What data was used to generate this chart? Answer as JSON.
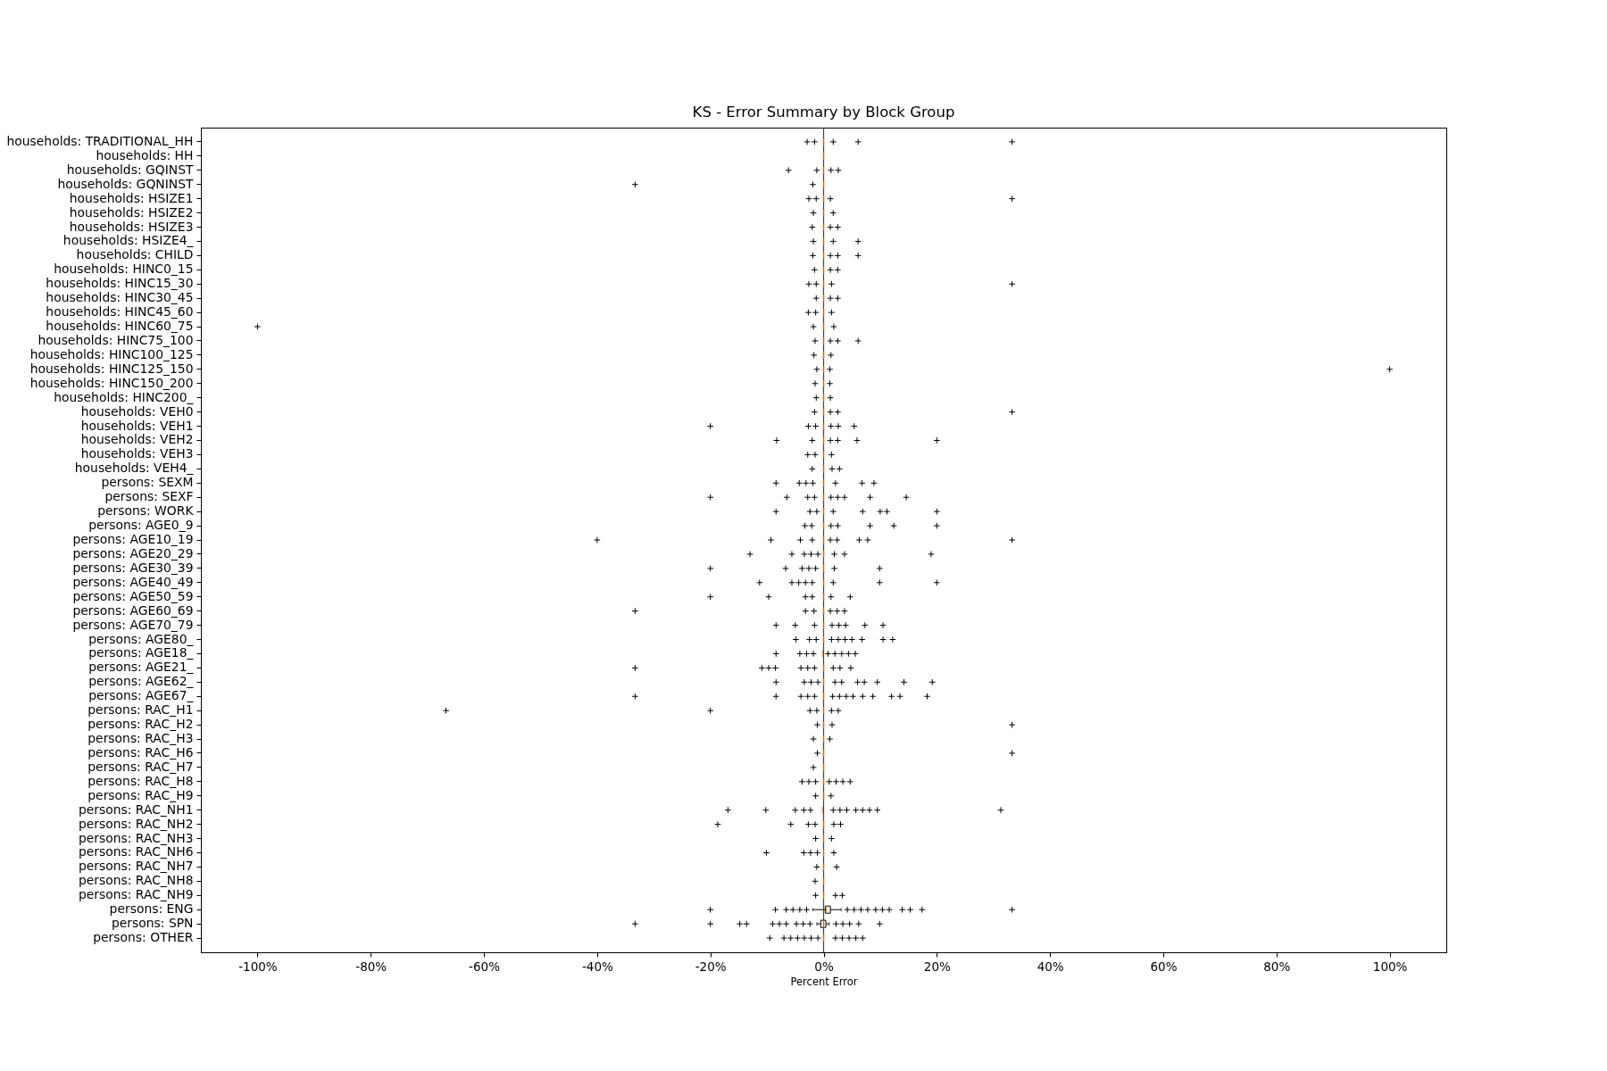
{
  "chart_data": {
    "type": "box",
    "orientation": "horizontal",
    "title": "KS - Error Summary by Block Group",
    "xlabel": "Percent Error",
    "color": "#ff7f0e",
    "marker": "cross",
    "xlim": [
      -110,
      110
    ],
    "xticks": [
      {
        "value": -100,
        "label": "-100%"
      },
      {
        "value": -80,
        "label": "-80%"
      },
      {
        "value": -60,
        "label": "-60%"
      },
      {
        "value": -40,
        "label": "-40%"
      },
      {
        "value": -20,
        "label": "-20%"
      },
      {
        "value": 0,
        "label": "0%"
      },
      {
        "value": 20,
        "label": "20%"
      },
      {
        "value": 40,
        "label": "40%"
      },
      {
        "value": 60,
        "label": "60%"
      },
      {
        "value": 80,
        "label": "80%"
      },
      {
        "value": 100,
        "label": "100%"
      }
    ],
    "ref_lines": [
      {
        "axis": "x",
        "value": 0,
        "color": "#444444"
      }
    ],
    "categories": [
      "households: TRADITIONAL_HH",
      "households: HH",
      "households: GQINST",
      "households: GQNINST",
      "households: HSIZE1",
      "households: HSIZE2",
      "households: HSIZE3",
      "households: HSIZE4_",
      "households: CHILD",
      "households: HINC0_15",
      "households: HINC15_30",
      "households: HINC30_45",
      "households: HINC45_60",
      "households: HINC60_75",
      "households: HINC75_100",
      "households: HINC100_125",
      "households: HINC125_150",
      "households: HINC150_200",
      "households: HINC200_",
      "households: VEH0",
      "households: VEH1",
      "households: VEH2",
      "households: VEH3",
      "households: VEH4_",
      "persons: SEXM",
      "persons: SEXF",
      "persons: WORK",
      "persons: AGE0_9",
      "persons: AGE10_19",
      "persons: AGE20_29",
      "persons: AGE30_39",
      "persons: AGE40_49",
      "persons: AGE50_59",
      "persons: AGE60_69",
      "persons: AGE70_79",
      "persons: AGE80_",
      "persons: AGE18_",
      "persons: AGE21_",
      "persons: AGE62_",
      "persons: AGE67_",
      "persons: RAC_H1",
      "persons: RAC_H2",
      "persons: RAC_H3",
      "persons: RAC_H6",
      "persons: RAC_H7",
      "persons: RAC_H8",
      "persons: RAC_H9",
      "persons: RAC_NH1",
      "persons: RAC_NH2",
      "persons: RAC_NH3",
      "persons: RAC_NH6",
      "persons: RAC_NH7",
      "persons: RAC_NH8",
      "persons: RAC_NH9",
      "persons: ENG",
      "persons: SPN",
      "persons: OTHER"
    ],
    "boxes": [
      {
        "low": 0,
        "q1": 0,
        "median": 0,
        "q3": 0,
        "high": 0,
        "outliers": [
          -2.9,
          -1.6,
          1.7,
          6.1,
          33.3
        ]
      },
      {
        "low": 0,
        "q1": 0,
        "median": 0,
        "q3": 0,
        "high": 0
      },
      {
        "low": 0,
        "q1": 0,
        "median": 0,
        "q3": 0,
        "high": 0,
        "outliers": [
          -6.2,
          -1.2,
          1.3,
          2.6
        ]
      },
      {
        "low": 0,
        "q1": 0,
        "median": 0,
        "q3": 0,
        "high": 0,
        "outliers": [
          -33.3,
          -1.9
        ]
      },
      {
        "low": 0,
        "q1": 0,
        "median": 0,
        "q3": 0,
        "high": 0,
        "outliers": [
          -2.6,
          -1.3,
          1.2,
          33.3
        ]
      },
      {
        "low": 0,
        "q1": 0,
        "median": 0,
        "q3": 0,
        "high": 0,
        "outliers": [
          -1.8,
          1.7
        ]
      },
      {
        "low": 0,
        "q1": 0,
        "median": 0,
        "q3": 0,
        "high": 0,
        "outliers": [
          -2.0,
          1.2,
          2.5
        ]
      },
      {
        "low": 0,
        "q1": 0,
        "median": 0,
        "q3": 0,
        "high": 0,
        "outliers": [
          -1.8,
          1.7,
          6.1
        ]
      },
      {
        "low": 0,
        "q1": 0,
        "median": 0,
        "q3": 0,
        "high": 0,
        "outliers": [
          -1.9,
          1.2,
          2.5,
          6.1
        ]
      },
      {
        "low": 0,
        "q1": 0,
        "median": 0,
        "q3": 0,
        "high": 0,
        "outliers": [
          -1.6,
          1.2,
          2.5
        ]
      },
      {
        "low": 0,
        "q1": 0,
        "median": 0,
        "q3": 0,
        "high": 0,
        "outliers": [
          -2.6,
          -1.3,
          1.4,
          33.3
        ]
      },
      {
        "low": 0,
        "q1": 0,
        "median": 0,
        "q3": 0,
        "high": 0,
        "outliers": [
          -1.3,
          1.2,
          2.5
        ]
      },
      {
        "low": 0,
        "q1": 0,
        "median": 0,
        "q3": 0,
        "high": 0,
        "outliers": [
          -2.7,
          -1.4,
          1.4
        ]
      },
      {
        "low": 0,
        "q1": 0,
        "median": 0,
        "q3": 0,
        "high": 0,
        "outliers": [
          -100,
          -1.8,
          1.8
        ]
      },
      {
        "low": 0,
        "q1": 0,
        "median": 0,
        "q3": 0,
        "high": 0,
        "outliers": [
          -1.5,
          1.2,
          2.5,
          6.1
        ]
      },
      {
        "low": 0,
        "q1": 0,
        "median": 0,
        "q3": 0,
        "high": 0,
        "outliers": [
          -1.7,
          1.3
        ]
      },
      {
        "low": 0,
        "q1": 0,
        "median": 0,
        "q3": 0,
        "high": 0,
        "outliers": [
          -1.2,
          1.1,
          100
        ]
      },
      {
        "low": 0,
        "q1": 0,
        "median": 0,
        "q3": 0,
        "high": 0,
        "outliers": [
          -1.5,
          1.1
        ]
      },
      {
        "low": 0,
        "q1": 0,
        "median": 0,
        "q3": 0,
        "high": 0,
        "outliers": [
          -1.3,
          1.2
        ]
      },
      {
        "low": 0,
        "q1": 0,
        "median": 0,
        "q3": 0,
        "high": 0,
        "outliers": [
          -1.6,
          1.2,
          2.5,
          33.3
        ]
      },
      {
        "low": 0,
        "q1": 0,
        "median": 0,
        "q3": 0,
        "high": 0,
        "outliers": [
          -20,
          -2.7,
          -1.4,
          1.3,
          2.6,
          5.4
        ]
      },
      {
        "low": 0,
        "q1": 0,
        "median": 0,
        "q3": 0,
        "high": 0,
        "outliers": [
          -8.3,
          -2.0,
          1.2,
          2.5,
          5.9,
          20
        ]
      },
      {
        "low": 0,
        "q1": 0,
        "median": 0,
        "q3": 0,
        "high": 0,
        "outliers": [
          -2.8,
          -1.5,
          1.4
        ]
      },
      {
        "low": 0,
        "q1": 0,
        "median": 0,
        "q3": 0,
        "high": 0,
        "outliers": [
          -2.0,
          1.5,
          2.8
        ]
      },
      {
        "low": 0,
        "q1": 0,
        "median": 0,
        "q3": 0,
        "high": 0,
        "outliers": [
          -8.4,
          -4.3,
          -3.1,
          -1.9,
          2.1,
          6.8,
          8.9
        ]
      },
      {
        "low": 0,
        "q1": 0,
        "median": 0,
        "q3": 0,
        "high": 0,
        "outliers": [
          -20,
          -6.5,
          -2.8,
          -1.6,
          1.3,
          2.5,
          3.7,
          8.2,
          14.6
        ]
      },
      {
        "low": 0,
        "q1": 0,
        "median": 0,
        "q3": 0,
        "high": 0,
        "outliers": [
          -8.4,
          -2.4,
          -1.2,
          1.7,
          6.9,
          10.0,
          11.2,
          20
        ]
      },
      {
        "low": 0,
        "q1": 0,
        "median": 0,
        "q3": 0,
        "high": 0,
        "outliers": [
          -3.3,
          -2.1,
          1.3,
          2.5,
          8.2,
          12.4,
          20
        ]
      },
      {
        "low": 0,
        "q1": 0,
        "median": 0,
        "q3": 0,
        "high": 0,
        "outliers": [
          -40,
          -9.3,
          -4.1,
          -2.0,
          1.2,
          2.4,
          6.3,
          7.8,
          33.3
        ]
      },
      {
        "low": 0,
        "q1": 0,
        "median": 0,
        "q3": 0,
        "high": 0,
        "outliers": [
          -13.0,
          -5.6,
          -3.4,
          -2.2,
          -1.0,
          1.9,
          3.7,
          19.0
        ]
      },
      {
        "low": 0,
        "q1": 0,
        "median": 0,
        "q3": 0,
        "high": 0,
        "outliers": [
          -20,
          -6.7,
          -3.8,
          -2.6,
          -1.4,
          1.9,
          9.9
        ]
      },
      {
        "low": 0,
        "q1": 0,
        "median": 0,
        "q3": 0,
        "high": 0,
        "outliers": [
          -11.3,
          -5.6,
          -4.4,
          -3.2,
          -2.0,
          1.7,
          9.9,
          20
        ]
      },
      {
        "low": 0,
        "q1": 0,
        "median": 0,
        "q3": 0,
        "high": 0,
        "outliers": [
          -20,
          -9.7,
          -3.2,
          -2.0,
          1.3,
          4.7
        ]
      },
      {
        "low": 0,
        "q1": 0,
        "median": 0,
        "q3": 0,
        "high": 0,
        "outliers": [
          -33.3,
          -3.2,
          -1.7,
          1.2,
          2.4,
          3.7
        ]
      },
      {
        "low": 0,
        "q1": 0,
        "median": 0,
        "q3": 0,
        "high": 0,
        "outliers": [
          -8.4,
          -5.0,
          -1.6,
          1.5,
          2.7,
          3.9,
          7.3,
          10.5
        ]
      },
      {
        "low": 0,
        "q1": 0,
        "median": 0,
        "q3": 0,
        "high": 0,
        "outliers": [
          -4.9,
          -2.5,
          -1.3,
          1.4,
          2.6,
          3.8,
          5.0,
          6.8,
          10.5,
          12.2
        ]
      },
      {
        "low": -0.2,
        "q1": -0.2,
        "median": -0.2,
        "q3": -0.2,
        "high": -0.2,
        "outliers": [
          -8.4,
          -4.2,
          -3.0,
          -1.8,
          0.8,
          2.0,
          3.2,
          4.4,
          5.6
        ]
      },
      {
        "low": 0,
        "q1": 0,
        "median": 0,
        "q3": 0,
        "high": 0,
        "outliers": [
          -33.3,
          -10.9,
          -9.7,
          -8.5,
          -4.0,
          -2.8,
          -1.6,
          1.7,
          2.9,
          4.8
        ]
      },
      {
        "low": 0,
        "q1": 0,
        "median": 0,
        "q3": 0,
        "high": 0,
        "outliers": [
          -8.4,
          -3.4,
          -2.2,
          -1.0,
          2.0,
          3.2,
          6.0,
          7.2,
          9.5,
          14.2,
          19.2
        ]
      },
      {
        "low": 0,
        "q1": 0,
        "median": 0,
        "q3": 0,
        "high": 0,
        "outliers": [
          -33.3,
          -8.4,
          -4.0,
          -2.8,
          -1.6,
          1.6,
          2.8,
          4.0,
          5.2,
          6.9,
          8.7,
          12.0,
          13.5,
          18.3
        ]
      },
      {
        "low": 0,
        "q1": 0,
        "median": 0,
        "q3": 0,
        "high": 0,
        "outliers": [
          -66.7,
          -20,
          -2.4,
          -1.2,
          1.4,
          2.6
        ]
      },
      {
        "low": 0,
        "q1": 0,
        "median": 0,
        "q3": 0,
        "high": 0,
        "outliers": [
          -1.1,
          1.5,
          33.3
        ]
      },
      {
        "low": 0,
        "q1": 0,
        "median": 0,
        "q3": 0,
        "high": 0,
        "outliers": [
          -1.8,
          1.1
        ]
      },
      {
        "low": 0,
        "q1": 0,
        "median": 0,
        "q3": 0,
        "high": 0,
        "outliers": [
          -1.1,
          33.3
        ]
      },
      {
        "low": 0,
        "q1": 0,
        "median": 0,
        "q3": 0,
        "high": 0,
        "outliers": [
          -1.8
        ]
      },
      {
        "low": 0,
        "q1": 0,
        "median": 0,
        "q3": 0,
        "high": 0,
        "outliers": [
          -3.8,
          -2.6,
          -1.4,
          1.0,
          2.2,
          3.4,
          4.7
        ]
      },
      {
        "low": 0,
        "q1": 0,
        "median": 0,
        "q3": 0,
        "high": 0,
        "outliers": [
          -1.4,
          1.3
        ]
      },
      {
        "low": -0.2,
        "q1": -0.2,
        "median": -0.2,
        "q3": -0.2,
        "high": -0.2,
        "outliers": [
          -16.9,
          -10.2,
          -5.0,
          -3.5,
          -2.3,
          1.7,
          2.9,
          4.1,
          5.7,
          6.9,
          8.1,
          9.5,
          31.3
        ]
      },
      {
        "low": 0,
        "q1": 0,
        "median": 0,
        "q3": 0,
        "high": 0,
        "outliers": [
          -18.7,
          -5.8,
          -2.7,
          -1.5,
          1.8,
          3.0
        ]
      },
      {
        "low": 0,
        "q1": 0,
        "median": 0,
        "q3": 0,
        "high": 0,
        "outliers": [
          -1.4,
          1.4
        ]
      },
      {
        "low": 0,
        "q1": 0,
        "median": 0,
        "q3": 0,
        "high": 0,
        "outliers": [
          -10.1,
          -3.5,
          -2.3,
          -1.1,
          1.8
        ]
      },
      {
        "low": 0,
        "q1": 0,
        "median": 0,
        "q3": 0,
        "high": 0,
        "outliers": [
          -1.2,
          2.3
        ]
      },
      {
        "low": 0,
        "q1": 0,
        "median": 0,
        "q3": 0,
        "high": 0,
        "outliers": [
          -1.5
        ]
      },
      {
        "low": 0,
        "q1": 0,
        "median": 0,
        "q3": 0,
        "high": 0,
        "outliers": [
          -1.4,
          2.1,
          3.3
        ]
      },
      {
        "low": -1.9,
        "q1": 0.3,
        "median": 0.5,
        "q3": 1.2,
        "high": 3.1,
        "outliers": [
          -20,
          -8.5,
          -6.6,
          -5.4,
          -4.2,
          -3.0,
          4.2,
          5.4,
          6.6,
          7.8,
          9.2,
          10.4,
          11.6,
          13.9,
          15.3,
          17.4,
          33.3
        ]
      },
      {
        "low": -1.2,
        "q1": -0.5,
        "median": 0,
        "q3": 0.4,
        "high": 1.0,
        "outliers": [
          -33.3,
          -20,
          -14.8,
          -13.6,
          -9.0,
          -7.8,
          -6.6,
          -4.8,
          -3.6,
          -2.4,
          2.2,
          3.4,
          4.6,
          6.2,
          9.9
        ]
      },
      {
        "low": 0,
        "q1": 0,
        "median": 0,
        "q3": 0,
        "high": 0,
        "outliers": [
          -9.5,
          -7.0,
          -5.8,
          -4.6,
          -3.4,
          -2.2,
          -1.0,
          2.1,
          3.3,
          4.5,
          5.7,
          6.9
        ]
      }
    ]
  }
}
